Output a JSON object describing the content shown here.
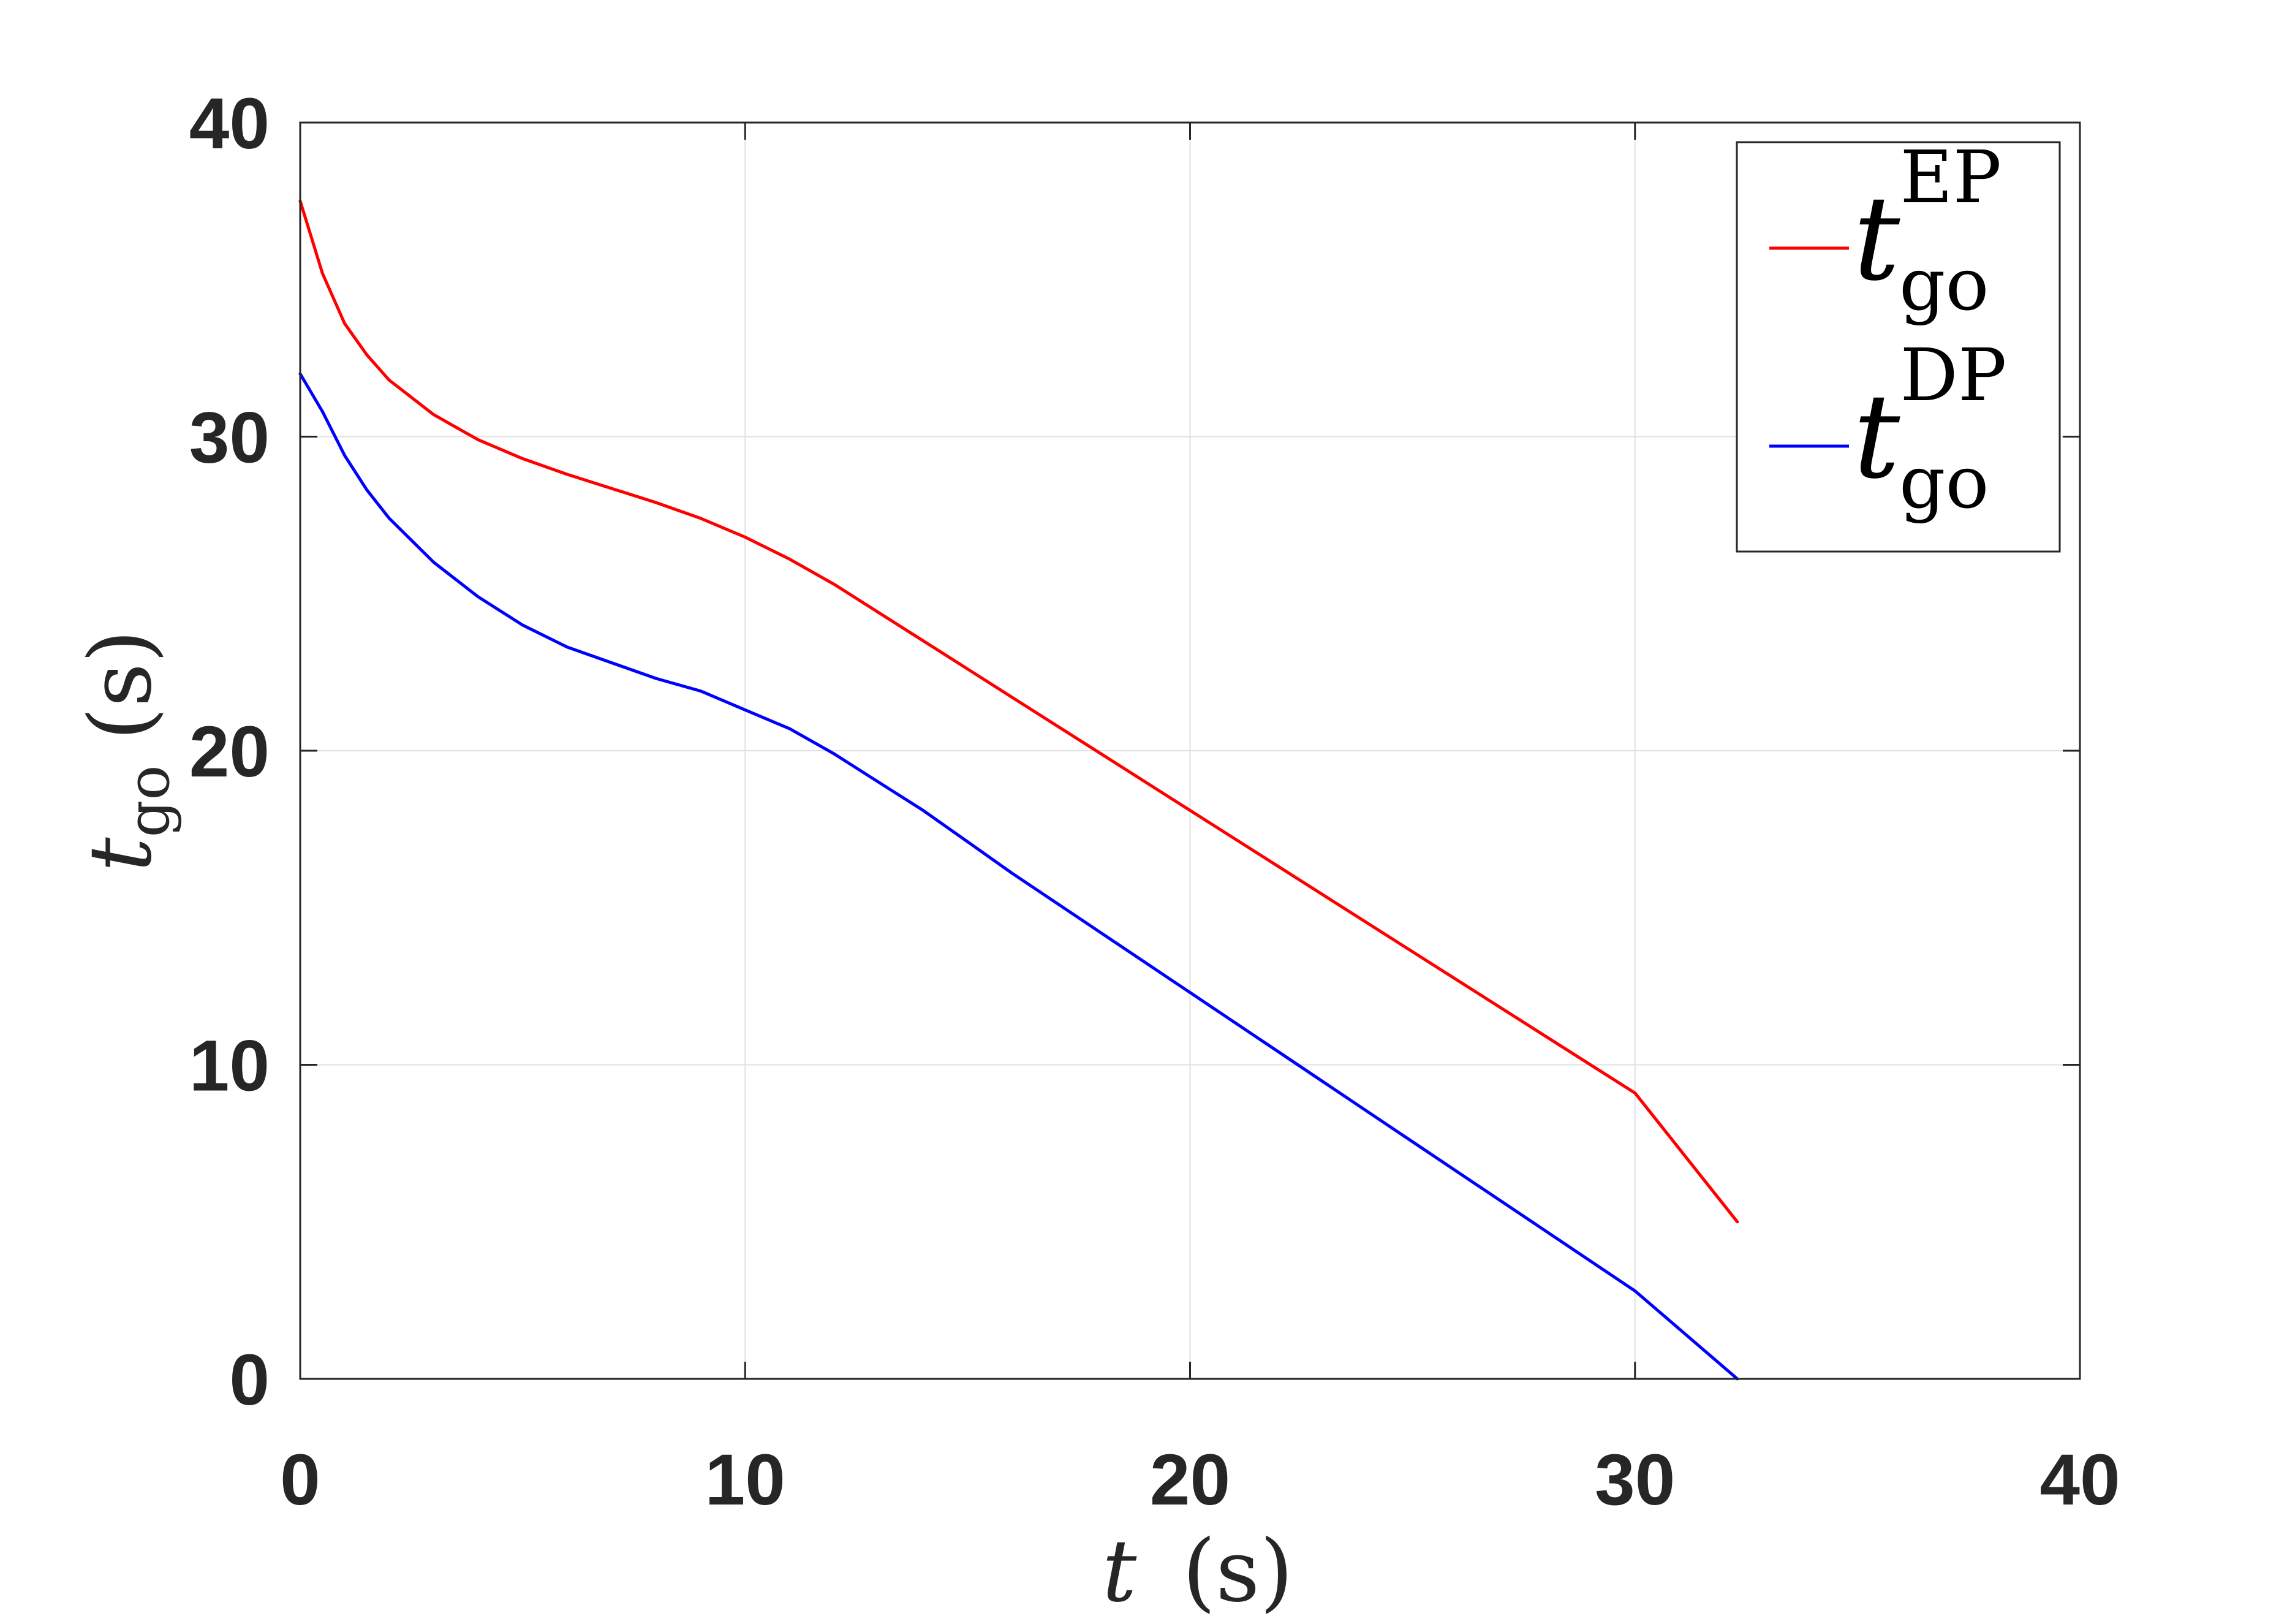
{
  "chart_data": {
    "type": "line",
    "xlabel": {
      "main": "t",
      "unit": "(s)"
    },
    "ylabel": {
      "main": "t",
      "sub": "go",
      "unit": "(s)"
    },
    "xlim": [
      0,
      40
    ],
    "ylim": [
      0,
      40
    ],
    "xticks": [
      "0",
      "10",
      "20",
      "30",
      "40"
    ],
    "yticks": [
      "0",
      "10",
      "20",
      "30",
      "40"
    ],
    "grid": true,
    "legend_position": "top-right",
    "series": [
      {
        "name": {
          "main": "t",
          "sup": "EP",
          "sub": "go"
        },
        "color": "#ff0000",
        "x": [
          0,
          0.5,
          1,
          1.5,
          2,
          3,
          4,
          5,
          6,
          7,
          8,
          9,
          10,
          11,
          12,
          13,
          14,
          15,
          16,
          18,
          20,
          22,
          24,
          26,
          28,
          30,
          32.3
        ],
        "y": [
          37.5,
          35.2,
          33.6,
          32.6,
          31.8,
          30.7,
          29.9,
          29.3,
          28.8,
          28.35,
          27.9,
          27.4,
          26.8,
          26.1,
          25.3,
          24.4,
          23.5,
          22.6,
          21.7,
          19.9,
          18.1,
          16.3,
          14.5,
          12.7,
          10.9,
          9.1,
          5.0
        ]
      },
      {
        "name": {
          "main": "t",
          "sup": "DP",
          "sub": "go"
        },
        "color": "#0000ff",
        "x": [
          0,
          0.5,
          1,
          1.5,
          2,
          3,
          4,
          5,
          6,
          7,
          8,
          9,
          10,
          11,
          12,
          13,
          14,
          15,
          16,
          18,
          20,
          22,
          24,
          26,
          28,
          30,
          32.3
        ],
        "y": [
          32.0,
          30.8,
          29.4,
          28.3,
          27.4,
          26.0,
          24.9,
          24.0,
          23.3,
          22.8,
          22.3,
          21.9,
          21.3,
          20.7,
          19.9,
          19.0,
          18.1,
          17.1,
          16.1,
          14.2,
          12.3,
          10.4,
          8.5,
          6.6,
          4.7,
          2.8,
          0.0
        ]
      }
    ]
  }
}
